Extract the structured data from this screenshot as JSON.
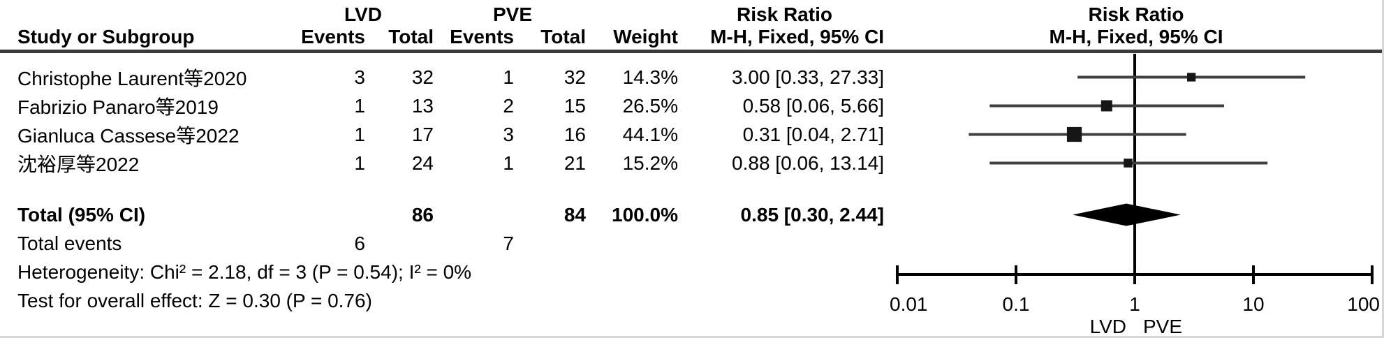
{
  "header": {
    "group": {
      "lvd": "LVD",
      "pve": "PVE",
      "risk_ratio_text": "Risk Ratio",
      "risk_ratio_plot": "Risk Ratio"
    },
    "cols": {
      "study": "Study or Subgroup",
      "lvd_events": "Events",
      "lvd_total": "Total",
      "pve_events": "Events",
      "pve_total": "Total",
      "weight": "Weight",
      "mh_text": "M-H, Fixed, 95% CI",
      "mh_plot": "M-H, Fixed, 95% CI"
    }
  },
  "rows": [
    {
      "study": "Christophe Laurent等2020",
      "lvd_events": "3",
      "lvd_total": "32",
      "pve_events": "1",
      "pve_total": "32",
      "weight": "14.3%",
      "rr_ci": "3.00 [0.33, 27.33]"
    },
    {
      "study": "Fabrizio Panaro等2019",
      "lvd_events": "1",
      "lvd_total": "13",
      "pve_events": "2",
      "pve_total": "15",
      "weight": "26.5%",
      "rr_ci": "0.58 [0.06, 5.66]"
    },
    {
      "study": "Gianluca Cassese等2022",
      "lvd_events": "1",
      "lvd_total": "17",
      "pve_events": "3",
      "pve_total": "16",
      "weight": "44.1%",
      "rr_ci": "0.31 [0.04, 2.71]"
    },
    {
      "study": "沈裕厚等2022",
      "lvd_events": "1",
      "lvd_total": "24",
      "pve_events": "1",
      "pve_total": "21",
      "weight": "15.2%",
      "rr_ci": "0.88 [0.06, 13.14]"
    }
  ],
  "totals": {
    "label": "Total (95% CI)",
    "lvd_total": "86",
    "pve_total": "84",
    "weight": "100.0%",
    "rr_ci": "0.85 [0.30, 2.44]"
  },
  "total_events": {
    "label": "Total events",
    "lvd": "6",
    "pve": "7"
  },
  "footnotes": {
    "heterogeneity": "Heterogeneity: Chi² = 2.18, df = 3 (P = 0.54); I² = 0%",
    "overall_effect": "Test for overall effect: Z = 0.30 (P = 0.76)"
  },
  "chart_data": {
    "type": "scatter",
    "subtype": "forest-plot",
    "effect_measure": "Risk Ratio, M-H, Fixed, 95% CI",
    "axis": {
      "scale": "log",
      "min": 0.01,
      "max": 100,
      "ticks": [
        0.01,
        0.1,
        1,
        10,
        100
      ],
      "tick_labels": [
        "0.01",
        "0.1",
        "1",
        "10",
        "100"
      ],
      "null_line": 1,
      "left_label": "LVD",
      "right_label": "PVE"
    },
    "studies": [
      {
        "name": "Christophe Laurent等2020",
        "rr": 3.0,
        "ci_low": 0.33,
        "ci_high": 27.33,
        "weight_pct": 14.3
      },
      {
        "name": "Fabrizio Panaro等2019",
        "rr": 0.58,
        "ci_low": 0.06,
        "ci_high": 5.66,
        "weight_pct": 26.5
      },
      {
        "name": "Gianluca Cassese等2022",
        "rr": 0.31,
        "ci_low": 0.04,
        "ci_high": 2.71,
        "weight_pct": 44.1
      },
      {
        "name": "沈裕厚等2022",
        "rr": 0.88,
        "ci_low": 0.06,
        "ci_high": 13.14,
        "weight_pct": 15.2
      }
    ],
    "summary": {
      "rr": 0.85,
      "ci_low": 0.3,
      "ci_high": 2.44
    },
    "colors": {
      "ci_line": "#404040",
      "marker": "#161616",
      "diamond": "#000000",
      "axis": "#000000",
      "null_line": "#000000",
      "header_rule": "#3a3a3a"
    }
  }
}
